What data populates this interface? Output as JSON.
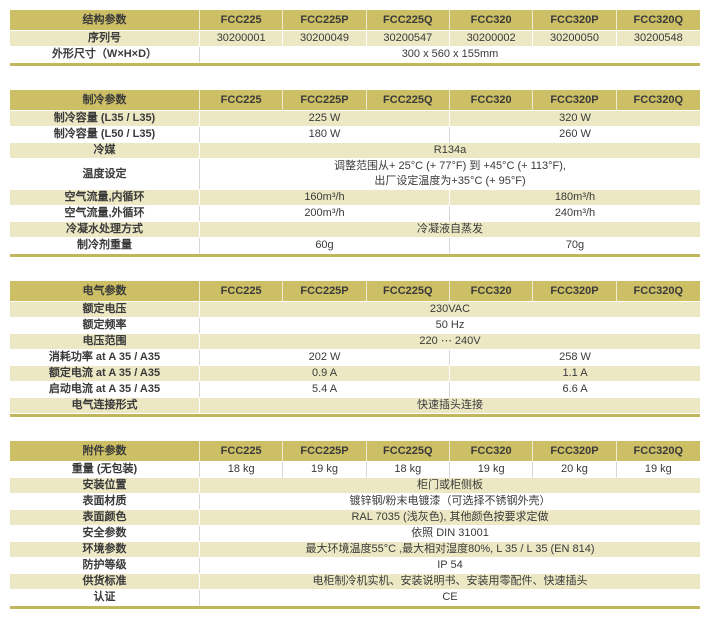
{
  "colors": {
    "header_gold": "#cdbf65",
    "row_cream": "#ede8c4",
    "divider": "#c2b65c",
    "text": "#3a3a3a"
  },
  "models": [
    "FCC225",
    "FCC225P",
    "FCC225Q",
    "FCC320",
    "FCC320P",
    "FCC320Q"
  ],
  "structure": {
    "title": "结构参数",
    "serial": {
      "label": "序列号",
      "values": [
        "30200001",
        "30200049",
        "30200547",
        "30200002",
        "30200050",
        "30200548"
      ]
    },
    "dimensions": {
      "label": "外形尺寸（W×H×D）",
      "value": "300 x 560 x 155mm"
    }
  },
  "cooling": {
    "title": "制冷参数",
    "capacity_l35": {
      "label": "制冷容量 (L35 / L35)",
      "left": "225 W",
      "right": "320 W"
    },
    "capacity_l50": {
      "label": "制冷容量 (L50 / L35)",
      "left": "180 W",
      "right": "260 W"
    },
    "refrigerant": {
      "label": "冷媒",
      "value": "R134a"
    },
    "temp_setting": {
      "label": "温度设定",
      "line1": "调整范围从+ 25°C (+ 77°F) 到 +45°C (+ 113°F),",
      "line2": "出厂设定温度为+35°C (+ 95°F)"
    },
    "airflow_internal": {
      "label": "空气流量,内循环",
      "left": "160m³/h",
      "right": "180m³/h"
    },
    "airflow_external": {
      "label": "空气流量,外循环",
      "left": "200m³/h",
      "right": "240m³/h"
    },
    "condensate": {
      "label": "冷凝水处理方式",
      "value": "冷凝液自蒸发"
    },
    "refrigerant_weight": {
      "label": "制冷剂重量",
      "left": "60g",
      "right": "70g"
    }
  },
  "electrical": {
    "title": "电气参数",
    "rated_voltage": {
      "label": "额定电压",
      "value": "230VAC"
    },
    "rated_frequency": {
      "label": "额定频率",
      "value": "50 Hz"
    },
    "voltage_range": {
      "label": "电压范围",
      "value": "220 ⋯ 240V"
    },
    "power_consumption": {
      "label": "消耗功率 at A 35 / A35",
      "left": "202 W",
      "right": "258 W"
    },
    "rated_current": {
      "label": "额定电流 at A 35 / A35",
      "left": "0.9 A",
      "right": "1.1 A"
    },
    "starting_current": {
      "label": "启动电流 at A 35 / A35",
      "left": "5.4 A",
      "right": "6.6 A"
    },
    "connection": {
      "label": "电气连接形式",
      "value": "快速插头连接"
    }
  },
  "accessories": {
    "title": "附件参数",
    "weight": {
      "label": "重量 (无包装)",
      "values": [
        "18 kg",
        "19 kg",
        "18 kg",
        "19 kg",
        "20 kg",
        "19 kg"
      ]
    },
    "mounting": {
      "label": "安装位置",
      "value": "柜门或柜侧板"
    },
    "material": {
      "label": "表面材质",
      "value": "镀锌钢/粉末电镀漆（可选择不锈钢外壳）"
    },
    "surface_color": {
      "label": "表面颜色",
      "value": "RAL 7035 (浅灰色), 其他颜色按要求定做"
    },
    "safety": {
      "label": "安全参数",
      "value": "依照 DIN 31001"
    },
    "environment": {
      "label": "环境参数",
      "value": "最大环境温度55°C ,最大相对湿度80%, L 35 / L 35 (EN 814)"
    },
    "protection": {
      "label": "防护等级",
      "value": "IP 54"
    },
    "delivery": {
      "label": "供货标准",
      "value": "电柜制冷机实机、安装说明书、安装用零配件、快速插头"
    },
    "certification": {
      "label": "认证",
      "value": "CE"
    }
  }
}
